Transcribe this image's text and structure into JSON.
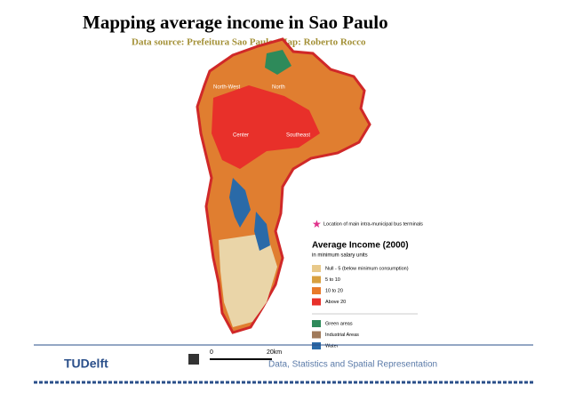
{
  "header": {
    "title": "Mapping average income in Sao Paulo",
    "subtitle": "Data source: Prefeitura Sao Paulo, Map: Roberto Rocco"
  },
  "map": {
    "labels": [
      "North-West",
      "North",
      "Center",
      "Southeast"
    ]
  },
  "legend": {
    "terminals": "Location of main intra-municipal bus terminals",
    "title": "Average Income (2000)",
    "subtitle": "in minimum salary units",
    "income_classes": [
      {
        "label": "Null - 5 (below minimum consumption)",
        "color": "#e8c98a"
      },
      {
        "label": "5 to 10",
        "color": "#d8a040"
      },
      {
        "label": "10 to 20",
        "color": "#e87a2a"
      },
      {
        "label": "Above 20",
        "color": "#e8302a"
      }
    ],
    "land_use": [
      {
        "label": "Green areas",
        "color": "#2e8a5a"
      },
      {
        "label": "Industrial Areas",
        "color": "#a07a5a"
      },
      {
        "label": "Water",
        "color": "#2a6aa8"
      }
    ]
  },
  "scale": {
    "start": "0",
    "end": "20km"
  },
  "footer": {
    "logo": "TUDelft",
    "course": "Data, Statistics and Spatial Representation"
  }
}
